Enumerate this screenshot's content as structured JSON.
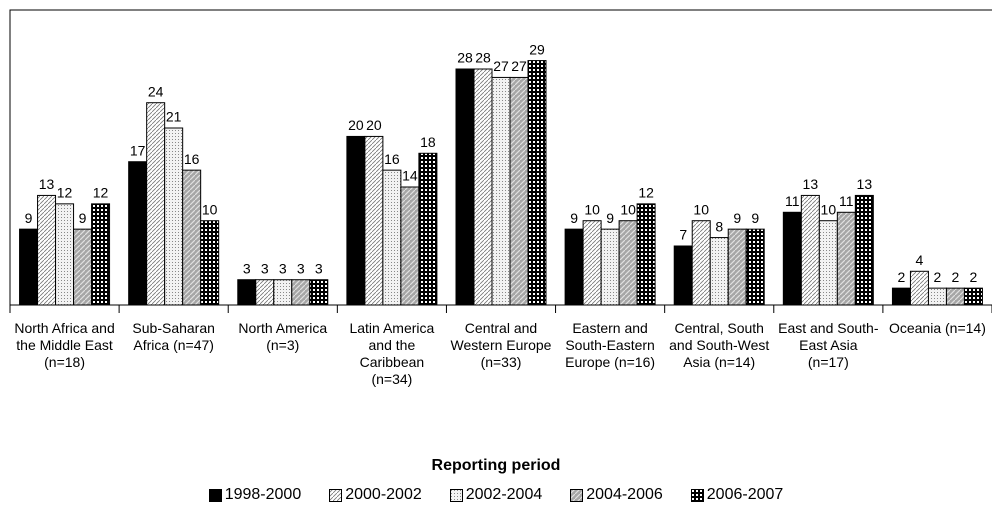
{
  "chart_data": {
    "type": "bar",
    "x_label": "Reporting period",
    "categories": [
      "North Africa and the Middle East (n=18)",
      "Sub-Saharan Africa (n=47)",
      "North America (n=3)",
      "Latin America and the Caribbean (n=34)",
      "Central and Western Europe (n=33)",
      "Eastern and South-Eastern Europe (n=16)",
      "Central, South and South-West Asia (n=14)",
      "East and South-East Asia (n=17)",
      "Oceania (n=14)"
    ],
    "series": [
      {
        "name": "1998-2000",
        "color": "#000000",
        "pattern": "solid",
        "values": [
          9,
          17,
          3,
          20,
          28,
          9,
          7,
          11,
          2
        ]
      },
      {
        "name": "2000-2002",
        "color": "#ffffff",
        "pattern": "hatch",
        "values": [
          13,
          24,
          3,
          20,
          28,
          10,
          10,
          13,
          4
        ]
      },
      {
        "name": "2002-2004",
        "color": "#e6e6e6",
        "pattern": "dots",
        "values": [
          12,
          21,
          3,
          16,
          27,
          9,
          8,
          10,
          2
        ]
      },
      {
        "name": "2004-2006",
        "color": "#a6a6a6",
        "pattern": "diag",
        "values": [
          9,
          16,
          3,
          14,
          27,
          10,
          9,
          11,
          2
        ]
      },
      {
        "name": "2006-2007",
        "color": "#000000",
        "pattern": "grid",
        "values": [
          12,
          10,
          3,
          18,
          29,
          12,
          9,
          13,
          2
        ]
      }
    ],
    "ylim": [
      0,
      35
    ],
    "legend": "bottom"
  }
}
